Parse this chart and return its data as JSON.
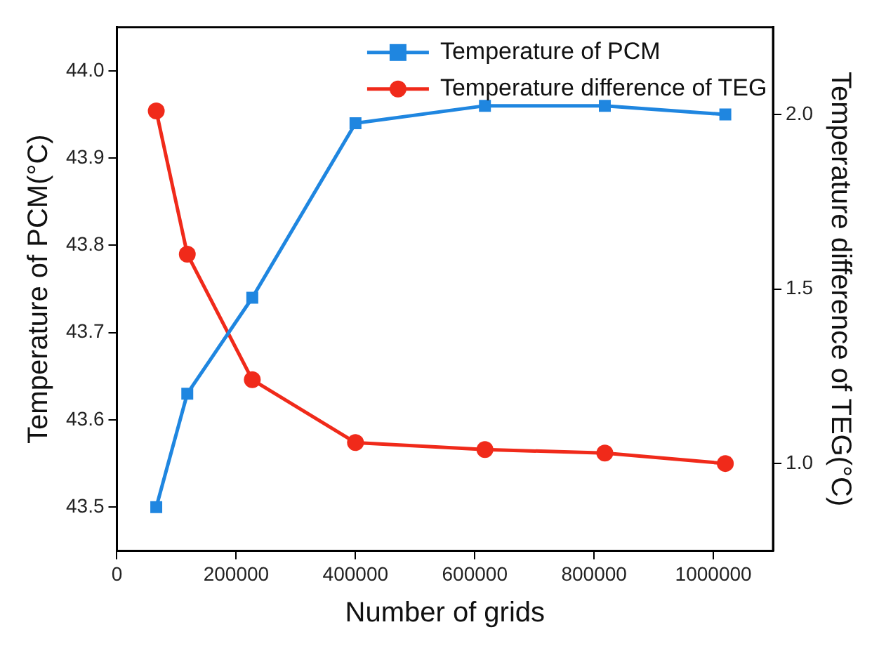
{
  "chart_data": {
    "type": "line",
    "xlabel": "Number of grids",
    "ylabel": "Temperature of PCM(°C)",
    "y2label": "Temperature difference of TEG(°C)",
    "x": [
      66000,
      118000,
      227000,
      400000,
      617000,
      818000,
      1020000
    ],
    "series": [
      {
        "name": "Temperature of PCM",
        "color": "#1f86e0",
        "marker": "square",
        "values": [
          43.5,
          43.63,
          43.74,
          43.94,
          43.96,
          43.96,
          43.95
        ]
      },
      {
        "name": "Temperature difference of TEG",
        "color": "#f02a1a",
        "marker": "circle",
        "axis": "y2",
        "values": [
          2.01,
          1.6,
          1.24,
          1.06,
          1.04,
          1.03,
          1.0
        ]
      }
    ],
    "xlim": [
      0,
      1100000
    ],
    "xticks": [
      0,
      200000,
      400000,
      600000,
      800000,
      1000000
    ],
    "ylim": [
      43.45,
      44.05
    ],
    "yticks": [
      43.5,
      43.6,
      43.7,
      43.8,
      43.9,
      {
        "value": 44,
        "label": "44.0"
      }
    ],
    "y2lim": [
      0.75,
      2.25
    ],
    "y2ticks": [
      {
        "value": 1,
        "label": "1.0"
      },
      1.5,
      {
        "value": 2,
        "label": "2.0"
      }
    ],
    "grid": false,
    "legend": "top right",
    "line_style": "solid"
  }
}
